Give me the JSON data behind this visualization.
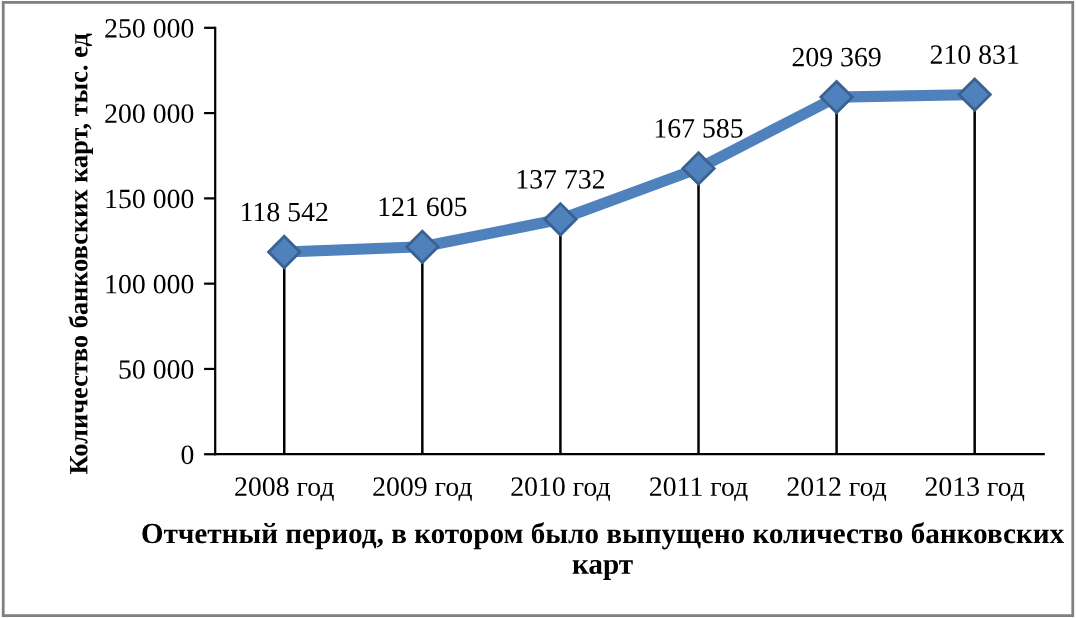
{
  "chart_data": {
    "type": "line",
    "categories": [
      "2008 год",
      "2009 год",
      "2010 год",
      "2011 год",
      "2012 год",
      "2013 год"
    ],
    "values": [
      118542,
      121605,
      137732,
      167585,
      209369,
      210831
    ],
    "value_labels": [
      "118 542",
      "121 605",
      "137 732",
      "167 585",
      "209 369",
      "210 831"
    ],
    "color": "#4f81bd",
    "marker": "diamond",
    "line_style": "solid",
    "grid": "x",
    "legend": false,
    "xlabel": "Отчетный период, в котором было выпущено количество банковских карт",
    "ylabel": "Количество банковских карт, тыс. ед",
    "ylim": [
      0,
      250000
    ],
    "yticks": [
      0,
      {
        "value": 50000,
        "label": "50 000"
      },
      {
        "value": 100000,
        "label": "100 000"
      },
      {
        "value": 150000,
        "label": "150 000"
      },
      {
        "value": 200000,
        "label": "200 000"
      },
      {
        "value": 250000,
        "label": "250 000"
      }
    ]
  }
}
